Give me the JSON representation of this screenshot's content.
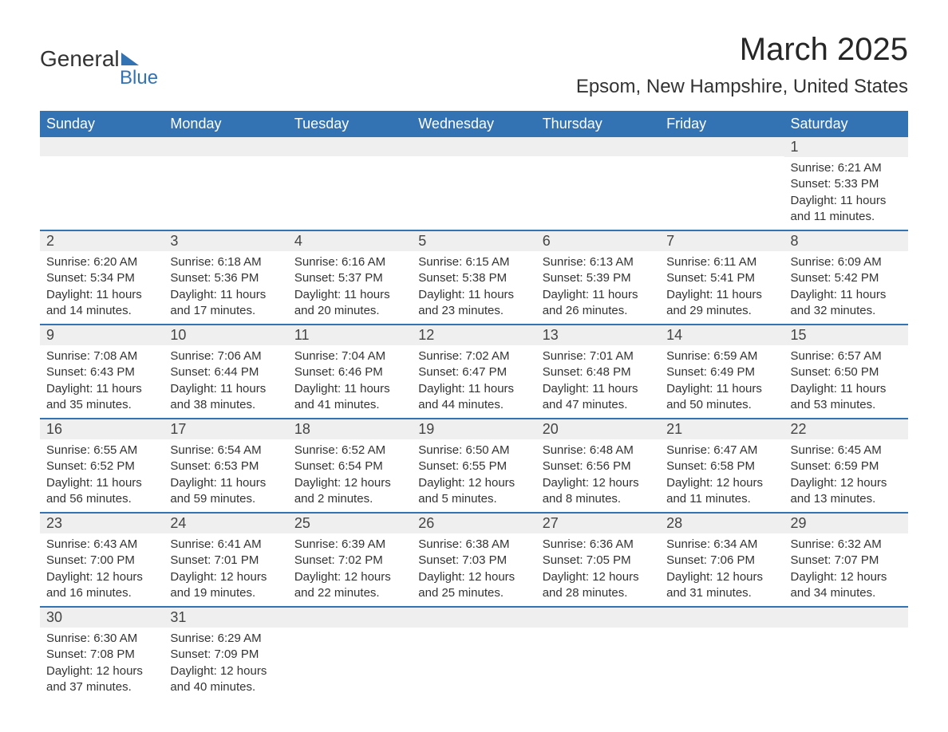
{
  "logo": {
    "word1": "General",
    "word2": "Blue"
  },
  "title": "March 2025",
  "location": "Epsom, New Hampshire, United States",
  "header_bg": "#3372b3",
  "header_fg": "#ffffff",
  "row_border": "#3372b3",
  "daynum_bg": "#efefef",
  "text_color": "#333333",
  "page_bg": "#ffffff",
  "day_names": [
    "Sunday",
    "Monday",
    "Tuesday",
    "Wednesday",
    "Thursday",
    "Friday",
    "Saturday"
  ],
  "weeks": [
    [
      null,
      null,
      null,
      null,
      null,
      null,
      {
        "n": "1",
        "sunrise": "6:21 AM",
        "sunset": "5:33 PM",
        "daylight": "11 hours and 11 minutes."
      }
    ],
    [
      {
        "n": "2",
        "sunrise": "6:20 AM",
        "sunset": "5:34 PM",
        "daylight": "11 hours and 14 minutes."
      },
      {
        "n": "3",
        "sunrise": "6:18 AM",
        "sunset": "5:36 PM",
        "daylight": "11 hours and 17 minutes."
      },
      {
        "n": "4",
        "sunrise": "6:16 AM",
        "sunset": "5:37 PM",
        "daylight": "11 hours and 20 minutes."
      },
      {
        "n": "5",
        "sunrise": "6:15 AM",
        "sunset": "5:38 PM",
        "daylight": "11 hours and 23 minutes."
      },
      {
        "n": "6",
        "sunrise": "6:13 AM",
        "sunset": "5:39 PM",
        "daylight": "11 hours and 26 minutes."
      },
      {
        "n": "7",
        "sunrise": "6:11 AM",
        "sunset": "5:41 PM",
        "daylight": "11 hours and 29 minutes."
      },
      {
        "n": "8",
        "sunrise": "6:09 AM",
        "sunset": "5:42 PM",
        "daylight": "11 hours and 32 minutes."
      }
    ],
    [
      {
        "n": "9",
        "sunrise": "7:08 AM",
        "sunset": "6:43 PM",
        "daylight": "11 hours and 35 minutes."
      },
      {
        "n": "10",
        "sunrise": "7:06 AM",
        "sunset": "6:44 PM",
        "daylight": "11 hours and 38 minutes."
      },
      {
        "n": "11",
        "sunrise": "7:04 AM",
        "sunset": "6:46 PM",
        "daylight": "11 hours and 41 minutes."
      },
      {
        "n": "12",
        "sunrise": "7:02 AM",
        "sunset": "6:47 PM",
        "daylight": "11 hours and 44 minutes."
      },
      {
        "n": "13",
        "sunrise": "7:01 AM",
        "sunset": "6:48 PM",
        "daylight": "11 hours and 47 minutes."
      },
      {
        "n": "14",
        "sunrise": "6:59 AM",
        "sunset": "6:49 PM",
        "daylight": "11 hours and 50 minutes."
      },
      {
        "n": "15",
        "sunrise": "6:57 AM",
        "sunset": "6:50 PM",
        "daylight": "11 hours and 53 minutes."
      }
    ],
    [
      {
        "n": "16",
        "sunrise": "6:55 AM",
        "sunset": "6:52 PM",
        "daylight": "11 hours and 56 minutes."
      },
      {
        "n": "17",
        "sunrise": "6:54 AM",
        "sunset": "6:53 PM",
        "daylight": "11 hours and 59 minutes."
      },
      {
        "n": "18",
        "sunrise": "6:52 AM",
        "sunset": "6:54 PM",
        "daylight": "12 hours and 2 minutes."
      },
      {
        "n": "19",
        "sunrise": "6:50 AM",
        "sunset": "6:55 PM",
        "daylight": "12 hours and 5 minutes."
      },
      {
        "n": "20",
        "sunrise": "6:48 AM",
        "sunset": "6:56 PM",
        "daylight": "12 hours and 8 minutes."
      },
      {
        "n": "21",
        "sunrise": "6:47 AM",
        "sunset": "6:58 PM",
        "daylight": "12 hours and 11 minutes."
      },
      {
        "n": "22",
        "sunrise": "6:45 AM",
        "sunset": "6:59 PM",
        "daylight": "12 hours and 13 minutes."
      }
    ],
    [
      {
        "n": "23",
        "sunrise": "6:43 AM",
        "sunset": "7:00 PM",
        "daylight": "12 hours and 16 minutes."
      },
      {
        "n": "24",
        "sunrise": "6:41 AM",
        "sunset": "7:01 PM",
        "daylight": "12 hours and 19 minutes."
      },
      {
        "n": "25",
        "sunrise": "6:39 AM",
        "sunset": "7:02 PM",
        "daylight": "12 hours and 22 minutes."
      },
      {
        "n": "26",
        "sunrise": "6:38 AM",
        "sunset": "7:03 PM",
        "daylight": "12 hours and 25 minutes."
      },
      {
        "n": "27",
        "sunrise": "6:36 AM",
        "sunset": "7:05 PM",
        "daylight": "12 hours and 28 minutes."
      },
      {
        "n": "28",
        "sunrise": "6:34 AM",
        "sunset": "7:06 PM",
        "daylight": "12 hours and 31 minutes."
      },
      {
        "n": "29",
        "sunrise": "6:32 AM",
        "sunset": "7:07 PM",
        "daylight": "12 hours and 34 minutes."
      }
    ],
    [
      {
        "n": "30",
        "sunrise": "6:30 AM",
        "sunset": "7:08 PM",
        "daylight": "12 hours and 37 minutes."
      },
      {
        "n": "31",
        "sunrise": "6:29 AM",
        "sunset": "7:09 PM",
        "daylight": "12 hours and 40 minutes."
      },
      null,
      null,
      null,
      null,
      null
    ]
  ],
  "labels": {
    "sunrise": "Sunrise: ",
    "sunset": "Sunset: ",
    "daylight": "Daylight: "
  }
}
